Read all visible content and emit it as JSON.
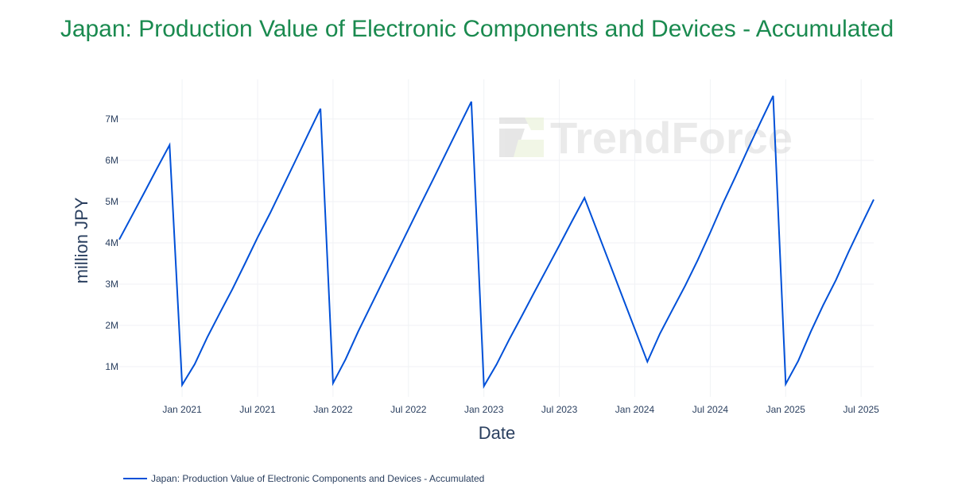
{
  "title": "Japan: Production Value of Electronic Components and Devices - Accumulated",
  "watermark": "TrendForce",
  "chart_data": {
    "type": "line",
    "title": "Japan: Production Value of Electronic Components and Devices - Accumulated",
    "xlabel": "Date",
    "ylabel": "million JPY",
    "xlim": [
      "2020-08",
      "2025-08"
    ],
    "ylim": [
      0.27,
      7.96
    ],
    "grid": true,
    "legend_position": "bottom-left",
    "x_ticks": [
      {
        "date": "2021-01",
        "label": "Jan 2021"
      },
      {
        "date": "2021-07",
        "label": "Jul 2021"
      },
      {
        "date": "2022-01",
        "label": "Jan 2022"
      },
      {
        "date": "2022-07",
        "label": "Jul 2022"
      },
      {
        "date": "2023-01",
        "label": "Jan 2023"
      },
      {
        "date": "2023-07",
        "label": "Jul 2023"
      },
      {
        "date": "2024-01",
        "label": "Jan 2024"
      },
      {
        "date": "2024-07",
        "label": "Jul 2024"
      },
      {
        "date": "2025-01",
        "label": "Jan 2025"
      },
      {
        "date": "2025-07",
        "label": "Jul 2025"
      }
    ],
    "y_ticks": [
      {
        "value": 1,
        "label": "1M"
      },
      {
        "value": 2,
        "label": "2M"
      },
      {
        "value": 3,
        "label": "3M"
      },
      {
        "value": 4,
        "label": "4M"
      },
      {
        "value": 5,
        "label": "5M"
      },
      {
        "value": 6,
        "label": "6M"
      },
      {
        "value": 7,
        "label": "7M"
      }
    ],
    "color": "#0050d8",
    "series": [
      {
        "name": "Japan: Production Value of Electronic Components and Devices - Accumulated",
        "points": [
          [
            "2020-08",
            4.08
          ],
          [
            "2020-09",
            4.65
          ],
          [
            "2020-10",
            5.22
          ],
          [
            "2020-11",
            5.8
          ],
          [
            "2020-12",
            6.37
          ],
          [
            "2021-01",
            0.56
          ],
          [
            "2021-02",
            1.06
          ],
          [
            "2021-03",
            1.71
          ],
          [
            "2021-04",
            2.3
          ],
          [
            "2021-05",
            2.88
          ],
          [
            "2021-06",
            3.5
          ],
          [
            "2021-07",
            4.13
          ],
          [
            "2021-08",
            4.72
          ],
          [
            "2021-09",
            5.35
          ],
          [
            "2021-10",
            5.98
          ],
          [
            "2021-11",
            6.62
          ],
          [
            "2021-12",
            7.25
          ],
          [
            "2022-01",
            0.6
          ],
          [
            "2022-02",
            1.18
          ],
          [
            "2022-03",
            1.85
          ],
          [
            "2022-04",
            2.47
          ],
          [
            "2022-05",
            3.09
          ],
          [
            "2022-06",
            3.71
          ],
          [
            "2022-07",
            4.33
          ],
          [
            "2022-08",
            4.95
          ],
          [
            "2022-09",
            5.56
          ],
          [
            "2022-10",
            6.18
          ],
          [
            "2022-11",
            6.8
          ],
          [
            "2022-12",
            7.42
          ],
          [
            "2023-01",
            0.53
          ],
          [
            "2023-02",
            1.05
          ],
          [
            "2023-03",
            1.65
          ],
          [
            "2023-04",
            2.22
          ],
          [
            "2023-05",
            2.8
          ],
          [
            "2023-06",
            3.37
          ],
          [
            "2023-07",
            3.94
          ],
          [
            "2023-08",
            4.52
          ],
          [
            "2023-09",
            5.09
          ],
          [
            "2024-02",
            1.12
          ],
          [
            "2024-03",
            1.8
          ],
          [
            "2024-04",
            2.38
          ],
          [
            "2024-05",
            2.96
          ],
          [
            "2024-06",
            3.58
          ],
          [
            "2024-07",
            4.25
          ],
          [
            "2024-08",
            4.95
          ],
          [
            "2024-09",
            5.6
          ],
          [
            "2024-10",
            6.27
          ],
          [
            "2024-11",
            6.92
          ],
          [
            "2024-12",
            7.56
          ],
          [
            "2025-01",
            0.58
          ],
          [
            "2025-02",
            1.14
          ],
          [
            "2025-03",
            1.85
          ],
          [
            "2025-04",
            2.5
          ],
          [
            "2025-05",
            3.1
          ],
          [
            "2025-06",
            3.78
          ],
          [
            "2025-07",
            4.42
          ],
          [
            "2025-08",
            5.05
          ]
        ]
      }
    ]
  }
}
